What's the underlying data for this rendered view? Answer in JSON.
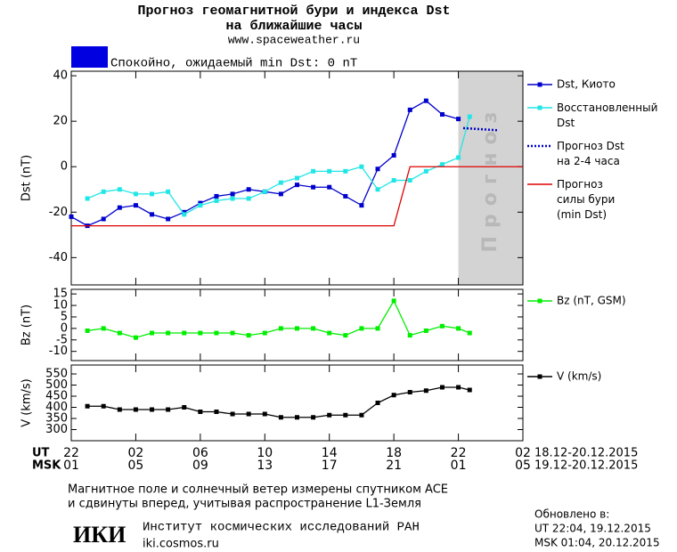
{
  "header": {
    "title": "Прогноз геомагнитной бури и индекса Dst",
    "subtitle": "на ближайшие часы",
    "site": "www.spaceweather.ru"
  },
  "status": {
    "color": "#0000e0",
    "text": "Спокойно, ожидаемый min Dst: 0 nT"
  },
  "chart_data": [
    {
      "type": "line",
      "ylabel": "Dst (nT)",
      "xlim": [
        0,
        28
      ],
      "ylim": [
        -52,
        42
      ],
      "yticks": [
        -40,
        -20,
        0,
        20,
        40
      ],
      "forecast_region": {
        "x": [
          24,
          28
        ],
        "label": "Прогноз",
        "color": "#d3d3d3"
      },
      "series": [
        {
          "name": "Dst, Киото",
          "color": "#0000cc",
          "marker": "square",
          "line_style": "solid",
          "x": [
            0,
            1,
            2,
            3,
            4,
            5,
            6,
            7,
            8,
            9,
            10,
            11,
            12,
            13,
            14,
            15,
            16,
            17,
            18,
            19,
            20,
            21,
            22,
            23,
            24
          ],
          "values": [
            -22,
            -26,
            -23,
            -18,
            -17,
            -21,
            -23,
            -20,
            -16,
            -13,
            -12,
            -10,
            -11,
            -12,
            -8,
            -9,
            -9,
            -13,
            -17,
            -1,
            5,
            25,
            29,
            23,
            21
          ]
        },
        {
          "name": "Восстановленный\nDst",
          "color": "#22e6e6",
          "marker": "square",
          "line_style": "solid",
          "x": [
            1,
            2,
            3,
            4,
            5,
            6,
            7,
            8,
            9,
            10,
            11,
            12,
            13,
            14,
            15,
            16,
            17,
            18,
            19,
            20,
            21,
            22,
            23,
            24,
            24.7
          ],
          "values": [
            -14,
            -11,
            -10,
            -12,
            -12,
            -11,
            -21,
            -17,
            -15,
            -14,
            -14,
            -11,
            -7,
            -5,
            -2,
            -2,
            -2,
            0,
            -10,
            -6,
            -6,
            -2,
            1,
            4,
            22
          ]
        },
        {
          "name": "Прогноз Dst\nна 2-4 часа",
          "color": "#0000cc",
          "marker": "none",
          "line_style": "dotted",
          "x": [
            24.3,
            26.5
          ],
          "values": [
            17,
            16
          ]
        },
        {
          "name": "Прогноз\nсилы бури\n(min Dst)",
          "color": "#dd0000",
          "marker": "none",
          "line_style": "solid",
          "x": [
            0,
            20,
            21,
            28
          ],
          "values": [
            -26,
            -26,
            0,
            0
          ]
        }
      ]
    },
    {
      "type": "line",
      "ylabel": "Bz (nT)",
      "xlim": [
        0,
        28
      ],
      "ylim": [
        -14,
        17
      ],
      "yticks": [
        -10,
        -5,
        0,
        5,
        10,
        15
      ],
      "series": [
        {
          "name": "Bz (nT, GSM)",
          "color": "#00ee00",
          "marker": "square",
          "line_style": "solid",
          "x": [
            1,
            2,
            3,
            4,
            5,
            6,
            7,
            8,
            9,
            10,
            11,
            12,
            13,
            14,
            15,
            16,
            17,
            18,
            19,
            20,
            21,
            22,
            23,
            24,
            24.7
          ],
          "values": [
            -1,
            0,
            -2,
            -4,
            -2,
            -2,
            -2,
            -2,
            -2,
            -2,
            -3,
            -2,
            0,
            0,
            0,
            -2,
            -3,
            0,
            0,
            12,
            -3,
            -1,
            1,
            0,
            -2
          ]
        }
      ]
    },
    {
      "type": "line",
      "ylabel": "V (km/s)",
      "xlim": [
        0,
        28
      ],
      "ylim": [
        250,
        590
      ],
      "yticks": [
        300,
        350,
        400,
        450,
        500,
        550
      ],
      "xlabel": "UT",
      "x2label": "MSK",
      "xrange_label": "18.12-20.12.2015",
      "x2range_label": "19.12-20.12.2015",
      "xticks": [
        {
          "value": 0,
          "label": "22"
        },
        {
          "value": 4,
          "label": "02"
        },
        {
          "value": 8,
          "label": "06"
        },
        {
          "value": 12,
          "label": "10"
        },
        {
          "value": 16,
          "label": "14"
        },
        {
          "value": 20,
          "label": "18"
        },
        {
          "value": 24,
          "label": "22"
        },
        {
          "value": 28,
          "label": "02"
        }
      ],
      "x2ticks": [
        {
          "value": 0,
          "label": "01"
        },
        {
          "value": 4,
          "label": "05"
        },
        {
          "value": 8,
          "label": "09"
        },
        {
          "value": 12,
          "label": "13"
        },
        {
          "value": 16,
          "label": "17"
        },
        {
          "value": 20,
          "label": "21"
        },
        {
          "value": 24,
          "label": "01"
        },
        {
          "value": 28,
          "label": "05"
        }
      ],
      "series": [
        {
          "name": "V (km/s)",
          "color": "#000000",
          "marker": "square",
          "line_style": "solid",
          "x": [
            1,
            2,
            3,
            4,
            5,
            6,
            7,
            8,
            9,
            10,
            11,
            12,
            13,
            14,
            15,
            16,
            17,
            18,
            19,
            20,
            21,
            22,
            23,
            24,
            24.7
          ],
          "values": [
            405,
            405,
            390,
            390,
            390,
            390,
            400,
            380,
            380,
            370,
            370,
            370,
            355,
            355,
            355,
            365,
            365,
            365,
            420,
            455,
            468,
            475,
            490,
            490,
            478
          ]
        }
      ]
    }
  ],
  "footer": {
    "note": [
      "Магнитное поле и солнечный ветер измерены спутником ACE",
      "и сдвинуты вперед, учитывая распространение L1-Земля"
    ],
    "logo": "ИКИ",
    "institute": "Институт космических исследований РАН",
    "url": "iki.cosmos.ru",
    "updated": [
      "Обновлено в:",
      "UT  22:04, 19.12.2015",
      "MSK 01:04, 20.12.2015"
    ]
  }
}
